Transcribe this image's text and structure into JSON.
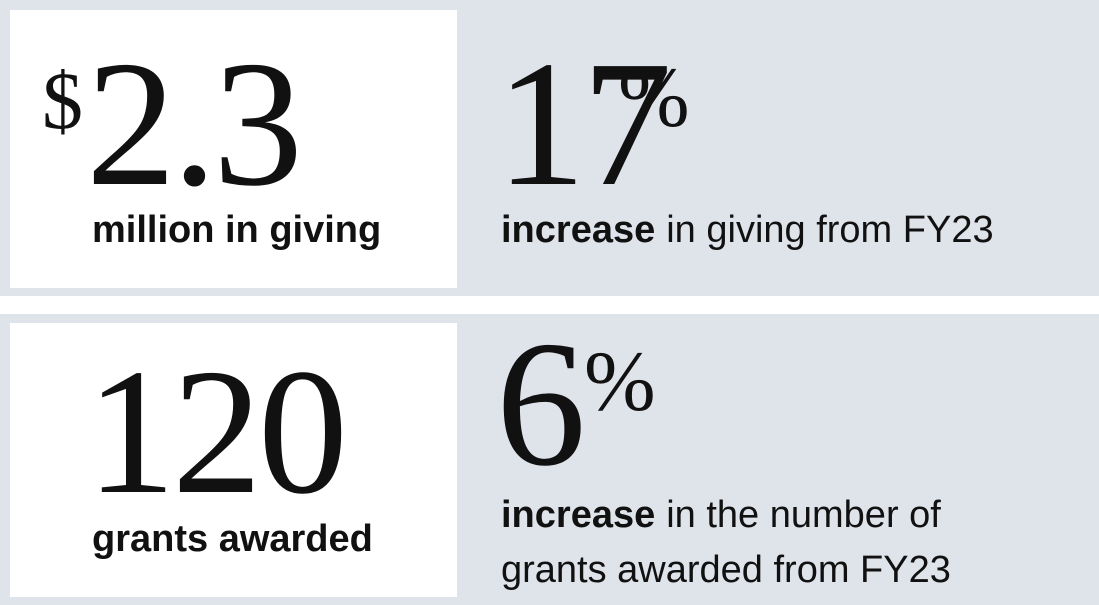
{
  "stats": [
    {
      "prefix": "$",
      "number": "2.3",
      "caption": "million in giving"
    },
    {
      "number": "17",
      "suffix": "%",
      "caption_bold": "increase",
      "caption": [
        "in giving from FY23"
      ]
    },
    {
      "number": "120",
      "caption": "grants awarded"
    },
    {
      "number": "6",
      "suffix": "%",
      "caption_bold": "increase",
      "caption": [
        "in the number of",
        "grants awarded from FY23"
      ]
    }
  ]
}
